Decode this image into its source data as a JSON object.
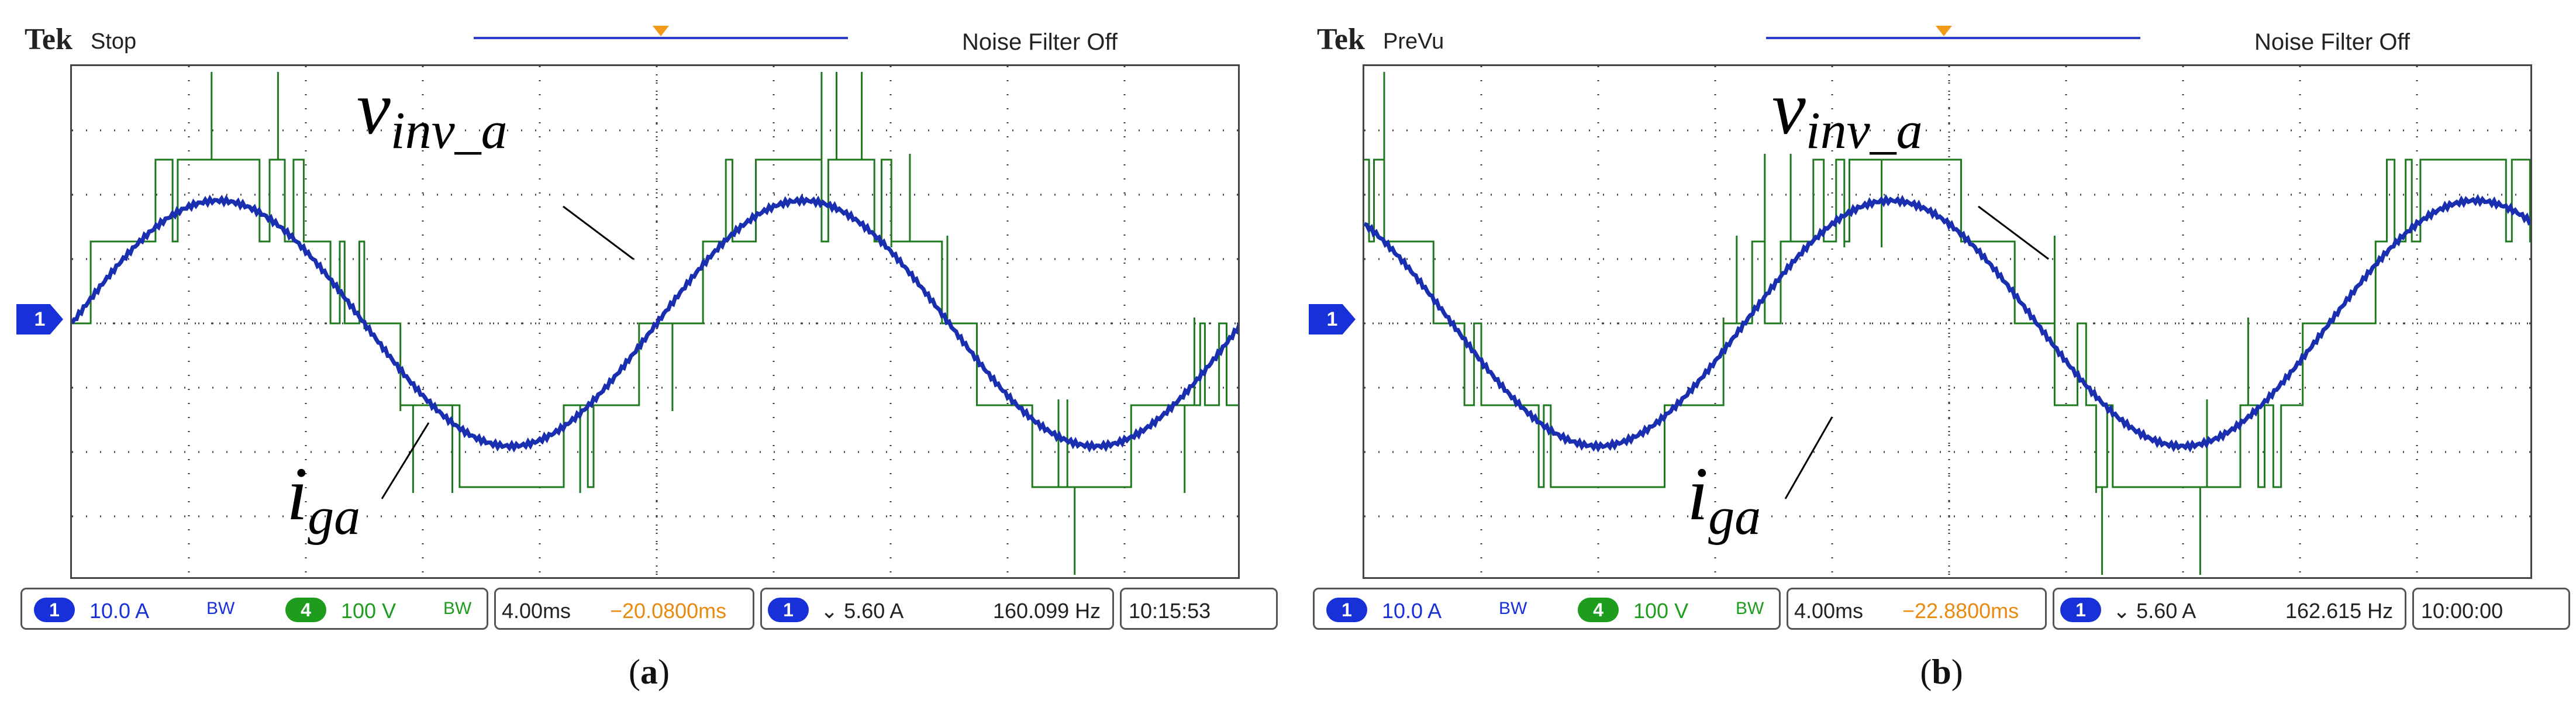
{
  "panels": [
    {
      "id": "a",
      "brand": "Tek",
      "mode": "Stop",
      "noise_filter": "Noise Filter Off",
      "channel_marker": "1",
      "label_voltage_main": "v",
      "label_voltage_sub": "inv_a",
      "label_current_main": "i",
      "label_current_sub": "ga",
      "ch1_badge": "1",
      "ch1_scale": "10.0 A",
      "bw1": "BW",
      "ch4_badge": "4",
      "ch4_scale": "100 V",
      "bw4": "BW",
      "timebase": "4.00ms",
      "position": "−20.0800ms",
      "trig_badge": "1",
      "trigger": "⌄ 5.60 A",
      "frequency": "160.099 Hz",
      "time": "10:15:53",
      "caption_open": "(",
      "caption_letter": "a",
      "caption_close": ")"
    },
    {
      "id": "b",
      "brand": "Tek",
      "mode": "PreVu",
      "noise_filter": "Noise Filter Off",
      "channel_marker": "1",
      "label_voltage_main": "v",
      "label_voltage_sub": "inv_a",
      "label_current_main": "i",
      "label_current_sub": "ga",
      "ch1_badge": "1",
      "ch1_scale": "10.0 A",
      "bw1": "BW",
      "ch4_badge": "4",
      "ch4_scale": "100 V",
      "bw4": "BW",
      "timebase": "4.00ms",
      "position": "−22.8800ms",
      "trig_badge": "1",
      "trigger": "⌄ 5.60 A",
      "frequency": "162.615 Hz",
      "time": "10:00:00",
      "caption_open": "(",
      "caption_letter": "b",
      "caption_close": ")"
    }
  ],
  "colors": {
    "current_trace": "#1a2fb0",
    "voltage_trace": "#1f7a1f",
    "grid": "#3a3a3a",
    "position_text": "#e98a10",
    "ch1": "#1830d8",
    "ch4": "#1e9c1e"
  }
}
